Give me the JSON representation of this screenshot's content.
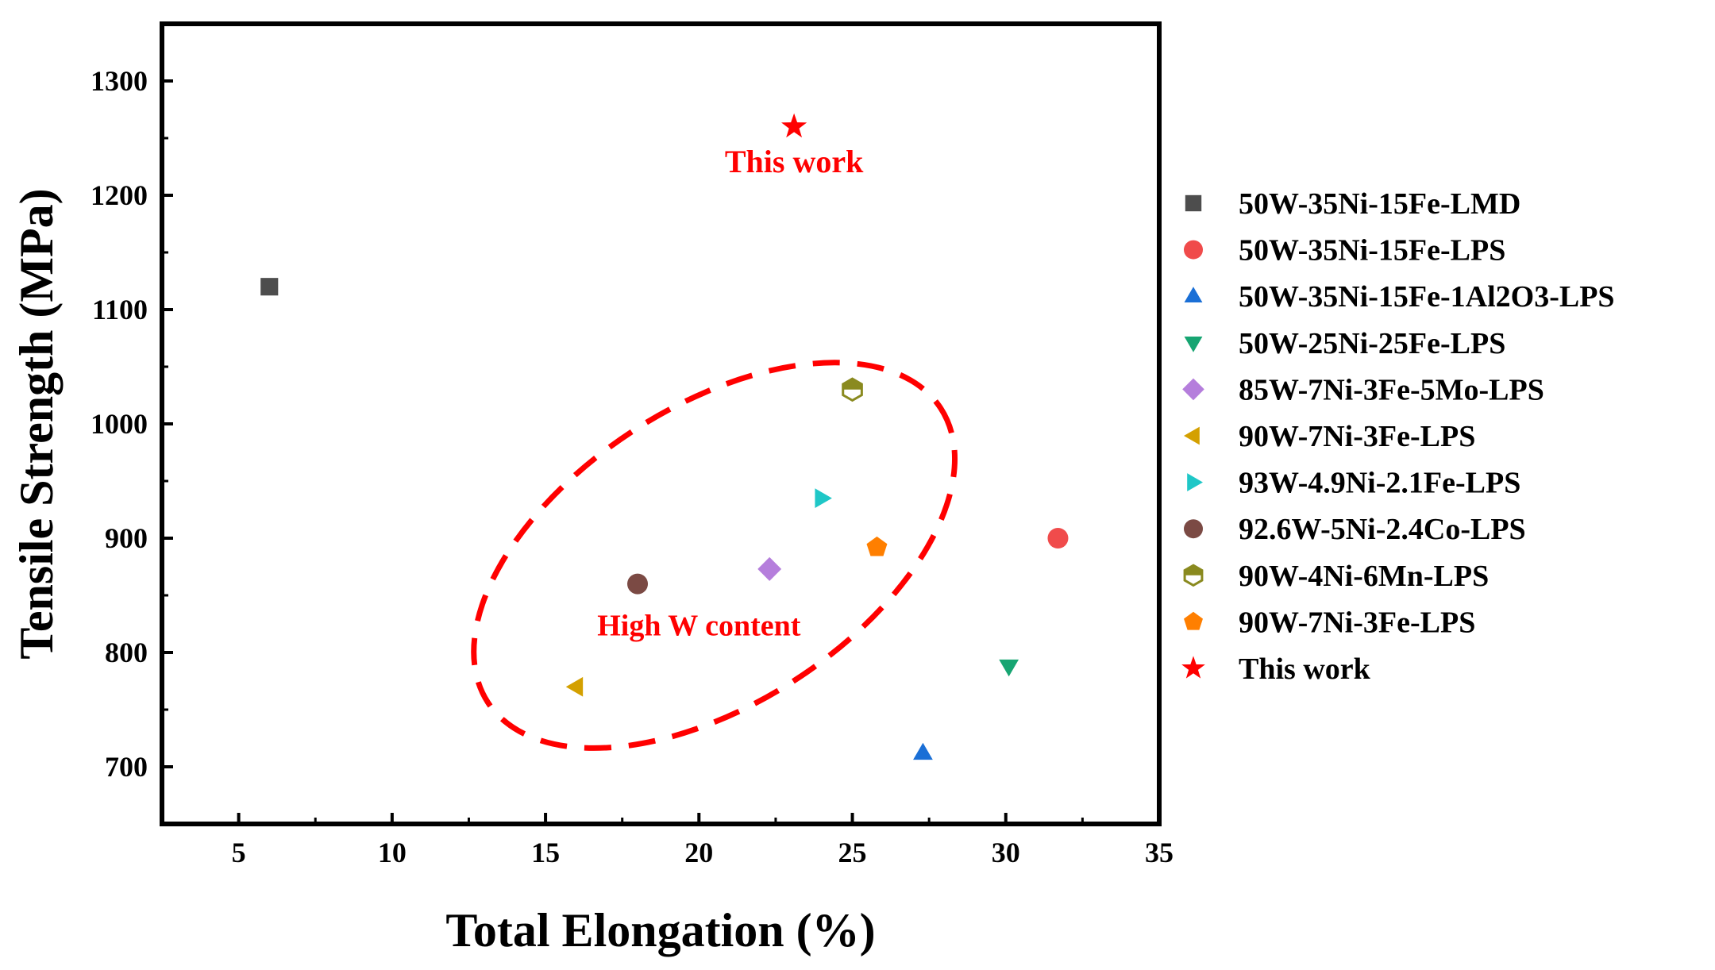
{
  "chart_data": {
    "type": "scatter",
    "title": "",
    "xlabel": "Total Elongation (%)",
    "ylabel": "Tensile Strength (MPa)",
    "xlim": [
      2.5,
      35
    ],
    "ylim": [
      650,
      1350
    ],
    "xticks": [
      5,
      10,
      15,
      20,
      25,
      30,
      35
    ],
    "yticks": [
      700,
      800,
      900,
      1000,
      1100,
      1200,
      1300
    ],
    "grid": false,
    "legend_position": "right",
    "series": [
      {
        "name": "50W-35Ni-15Fe-LMD",
        "marker": "square",
        "color": "#4d4d4d",
        "x": 6.0,
        "y": 1120
      },
      {
        "name": "50W-35Ni-15Fe-LPS",
        "marker": "circle",
        "color": "#f04b4b",
        "x": 31.7,
        "y": 900
      },
      {
        "name": "50W-35Ni-15Fe-1Al2O3-LPS",
        "marker": "triangle-up",
        "color": "#1a6fd6",
        "x": 27.3,
        "y": 712
      },
      {
        "name": "50W-25Ni-25Fe-LPS",
        "marker": "triangle-down",
        "color": "#17a572",
        "x": 30.1,
        "y": 788
      },
      {
        "name": "85W-7Ni-3Fe-5Mo-LPS",
        "marker": "diamond",
        "color": "#b57edc",
        "x": 22.3,
        "y": 873
      },
      {
        "name": "90W-7Ni-3Fe-LPS",
        "marker": "triangle-left",
        "color": "#d4a000",
        "x": 16.0,
        "y": 770
      },
      {
        "name": "93W-4.9Ni-2.1Fe-LPS",
        "marker": "triangle-right",
        "color": "#1fc7c7",
        "x": 24.0,
        "y": 935
      },
      {
        "name": "92.6W-5Ni-2.4Co-LPS",
        "marker": "circle",
        "color": "#7b4a44",
        "x": 18.0,
        "y": 860
      },
      {
        "name": "90W-4Ni-6Mn-LPS",
        "marker": "hexagon-half",
        "color": "#8a8a1f",
        "x": 25.0,
        "y": 1030
      },
      {
        "name": "90W-7Ni-3Fe-LPS",
        "marker": "pentagon",
        "color": "#ff7f00",
        "x": 25.8,
        "y": 892
      },
      {
        "name": "This work",
        "marker": "star",
        "color": "#ff0000",
        "x": 23.1,
        "y": 1260
      }
    ],
    "annotations": [
      {
        "text": "This work",
        "x": 23.1,
        "y": 1220,
        "color": "#ff0000"
      },
      {
        "text": "High W content",
        "x": 20.0,
        "y": 815,
        "color": "#ff0000"
      }
    ],
    "highlight_ellipse": {
      "cx": 20.5,
      "cy": 885,
      "rx": 8.8,
      "ry": 130,
      "tilt_deg": -33,
      "color": "#ff0000"
    }
  }
}
